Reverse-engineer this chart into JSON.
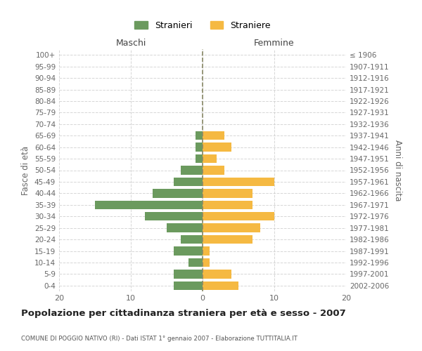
{
  "age_groups": [
    "100+",
    "95-99",
    "90-94",
    "85-89",
    "80-84",
    "75-79",
    "70-74",
    "65-69",
    "60-64",
    "55-59",
    "50-54",
    "45-49",
    "40-44",
    "35-39",
    "30-34",
    "25-29",
    "20-24",
    "15-19",
    "10-14",
    "5-9",
    "0-4"
  ],
  "birth_years": [
    "≤ 1906",
    "1907-1911",
    "1912-1916",
    "1917-1921",
    "1922-1926",
    "1927-1931",
    "1932-1936",
    "1937-1941",
    "1942-1946",
    "1947-1951",
    "1952-1956",
    "1957-1961",
    "1962-1966",
    "1967-1971",
    "1972-1976",
    "1977-1981",
    "1982-1986",
    "1987-1991",
    "1992-1996",
    "1997-2001",
    "2002-2006"
  ],
  "maschi": [
    0,
    0,
    0,
    0,
    0,
    0,
    0,
    1,
    1,
    1,
    3,
    4,
    7,
    15,
    8,
    5,
    3,
    4,
    2,
    4,
    4
  ],
  "femmine": [
    0,
    0,
    0,
    0,
    0,
    0,
    0,
    3,
    4,
    2,
    3,
    10,
    7,
    7,
    10,
    8,
    7,
    1,
    1,
    4,
    5
  ],
  "maschi_color": "#6b9a5e",
  "femmine_color": "#f5b942",
  "xmin": -20,
  "xmax": 20,
  "title": "Popolazione per cittadinanza straniera per età e sesso - 2007",
  "subtitle": "COMUNE DI POGGIO NATIVO (RI) - Dati ISTAT 1° gennaio 2007 - Elaborazione TUTTITALIA.IT",
  "ylabel_left": "Fasce di età",
  "ylabel_right": "Anni di nascita",
  "xlabel_maschi": "Maschi",
  "xlabel_femmine": "Femmine",
  "legend_maschi": "Stranieri",
  "legend_femmine": "Straniere",
  "bg_color": "#ffffff",
  "grid_color": "#cccccc",
  "text_color": "#666666",
  "xticks": [
    -20,
    -10,
    0,
    10,
    20
  ],
  "xtick_labels": [
    "20",
    "10",
    "0",
    "10",
    "20"
  ]
}
